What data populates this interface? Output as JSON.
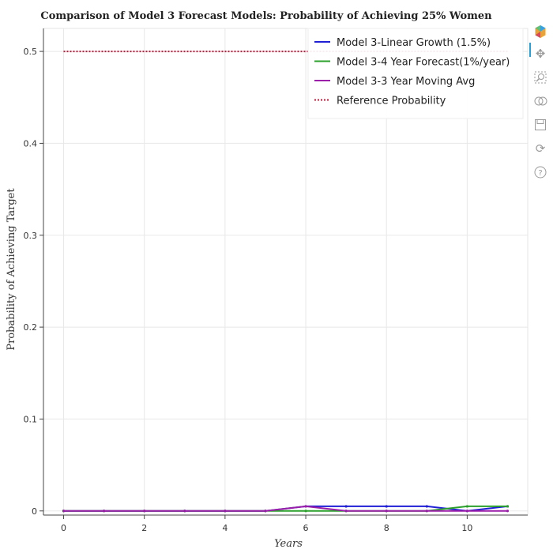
{
  "chart_data": {
    "type": "line",
    "title": "Comparison of Model 3 Forecast Models: Probability of Achieving 25% Women",
    "xlabel": "Years",
    "ylabel": "Probability of Achieving Target",
    "xlim": [
      -0.5,
      11.5
    ],
    "ylim": [
      -0.0045,
      0.525
    ],
    "x_ticks": [
      0,
      2,
      4,
      6,
      8,
      10
    ],
    "x_tick_labels": [
      "0",
      "2",
      "4",
      "6",
      "8",
      "10"
    ],
    "y_ticks": [
      0,
      0.1,
      0.2,
      0.3,
      0.4,
      0.5
    ],
    "y_tick_labels": [
      "0",
      "0.1",
      "0.2",
      "0.3",
      "0.4",
      "0.5"
    ],
    "grid": true,
    "legend_position": "top-right",
    "x": [
      0,
      1,
      2,
      3,
      4,
      5,
      6,
      7,
      8,
      9,
      10,
      11
    ],
    "series": [
      {
        "name": "Model 3-Linear Growth (1.5%)",
        "color": "#1f1fd6",
        "dash": "solid",
        "values": [
          0,
          0,
          0,
          0,
          0,
          0,
          0.005,
          0.005,
          0.005,
          0.005,
          0,
          0.005
        ]
      },
      {
        "name": "Model 3-4 Year Forecast(1%/year)",
        "color": "#2ca02c",
        "dash": "solid",
        "values": [
          0,
          0,
          0,
          0,
          0,
          0,
          0,
          0,
          0,
          0,
          0.005,
          0.005
        ]
      },
      {
        "name": "Model 3-3 Year Moving Avg",
        "color": "#9b1fa8",
        "dash": "solid",
        "values": [
          0,
          0,
          0,
          0,
          0,
          0,
          0.005,
          0,
          0,
          0,
          0,
          0
        ]
      },
      {
        "name": "Reference Probability",
        "color": "#c0183a",
        "dash": "dotted",
        "values": [
          0.5,
          0.5,
          0.5,
          0.5,
          0.5,
          0.5,
          0.5,
          0.5,
          0.5,
          0.5,
          0.5,
          0.5
        ]
      }
    ]
  },
  "toolbar": {
    "icons": [
      "logo-icon",
      "pan-icon",
      "box-zoom-icon",
      "wheel-zoom-icon",
      "save-icon",
      "reset-icon",
      "help-icon"
    ]
  }
}
